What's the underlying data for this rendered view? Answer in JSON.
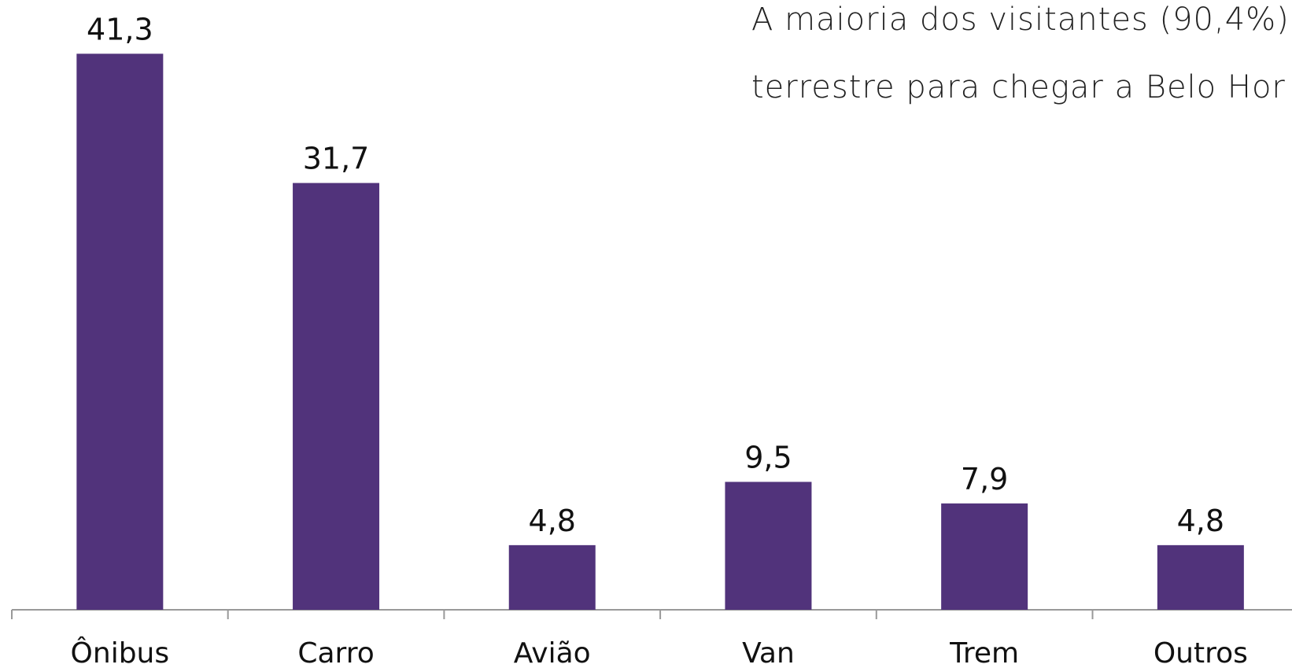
{
  "chart_data": {
    "type": "bar",
    "annotation": [
      "A maioria dos visitantes (90,4%)",
      "terrestre para chegar a Belo Hor"
    ],
    "categories": [
      "Ônibus",
      "Carro",
      "Avião",
      "Van",
      "Trem",
      "Outros"
    ],
    "values": [
      41.3,
      31.7,
      4.8,
      9.5,
      7.9,
      4.8
    ],
    "value_labels": [
      "41,3",
      "31,7",
      "4,8",
      "9,5",
      "7,9",
      "4,8"
    ],
    "color": "#51337b",
    "ylim": [
      0,
      45
    ]
  }
}
